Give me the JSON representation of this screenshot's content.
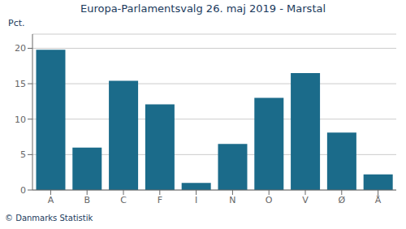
{
  "chart_data": {
    "type": "bar",
    "title": "Europa-Parlamentsvalg 26. maj 2019 - Marstal",
    "ylabel": "Pct.",
    "categories": [
      "A",
      "B",
      "C",
      "F",
      "I",
      "N",
      "O",
      "V",
      "Ø",
      "Å"
    ],
    "values": [
      19.8,
      6.0,
      15.4,
      12.1,
      1.0,
      6.5,
      13.0,
      16.5,
      8.1,
      2.2
    ],
    "color": "#1b6b8a",
    "ylim": [
      0,
      22
    ],
    "yticks": [
      0,
      5,
      10,
      15,
      20
    ],
    "grid": true,
    "annotations": [
      "© Danmarks Statistik"
    ]
  }
}
